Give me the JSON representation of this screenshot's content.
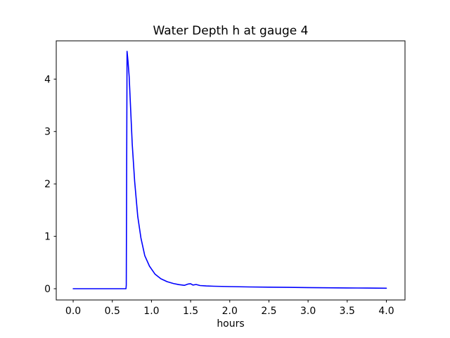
{
  "figure": {
    "background": "#ffffff"
  },
  "chart_data": {
    "type": "line",
    "title": "Water Depth h at gauge 4",
    "xlabel": "hours",
    "ylabel": "",
    "grid": false,
    "legend_position": "none",
    "line_color": "#0000ff",
    "axis_color": "#000000",
    "text_color": "#000000",
    "xlim": [
      -0.216,
      4.238
    ],
    "ylim": [
      -0.215,
      4.73
    ],
    "xticks": {
      "values": [
        0.0,
        0.5,
        1.0,
        1.5,
        2.0,
        2.5,
        3.0,
        3.5,
        4.0
      ],
      "labels": [
        "0.0",
        "0.5",
        "1.0",
        "1.5",
        "2.0",
        "2.5",
        "3.0",
        "3.5",
        "4.0"
      ]
    },
    "yticks": {
      "values": [
        0,
        1,
        2,
        3,
        4
      ],
      "labels": [
        "0",
        "1",
        "2",
        "3",
        "4"
      ]
    },
    "series": [
      {
        "name": "water depth h",
        "peak": {
          "x": 0.69,
          "y": 4.53
        },
        "points": [
          [
            0.0,
            0.0
          ],
          [
            0.15,
            0.0
          ],
          [
            0.3,
            0.0
          ],
          [
            0.45,
            0.0
          ],
          [
            0.6,
            0.0
          ],
          [
            0.655,
            0.0
          ],
          [
            0.675,
            0.0
          ],
          [
            0.678,
            0.07
          ],
          [
            0.688,
            4.53
          ],
          [
            0.7,
            4.35
          ],
          [
            0.715,
            4.05
          ],
          [
            0.735,
            3.4
          ],
          [
            0.755,
            2.75
          ],
          [
            0.785,
            2.05
          ],
          [
            0.825,
            1.38
          ],
          [
            0.865,
            0.97
          ],
          [
            0.915,
            0.63
          ],
          [
            0.975,
            0.43
          ],
          [
            1.045,
            0.28
          ],
          [
            1.12,
            0.19
          ],
          [
            1.2,
            0.135
          ],
          [
            1.28,
            0.1
          ],
          [
            1.35,
            0.078
          ],
          [
            1.42,
            0.065
          ],
          [
            1.47,
            0.09
          ],
          [
            1.5,
            0.095
          ],
          [
            1.53,
            0.07
          ],
          [
            1.57,
            0.08
          ],
          [
            1.62,
            0.06
          ],
          [
            1.7,
            0.052
          ],
          [
            1.8,
            0.047
          ],
          [
            2.0,
            0.04
          ],
          [
            2.25,
            0.034
          ],
          [
            2.5,
            0.029
          ],
          [
            2.75,
            0.025
          ],
          [
            3.0,
            0.021
          ],
          [
            3.25,
            0.018
          ],
          [
            3.5,
            0.015
          ],
          [
            3.75,
            0.012
          ],
          [
            4.0,
            0.01
          ]
        ]
      }
    ]
  }
}
